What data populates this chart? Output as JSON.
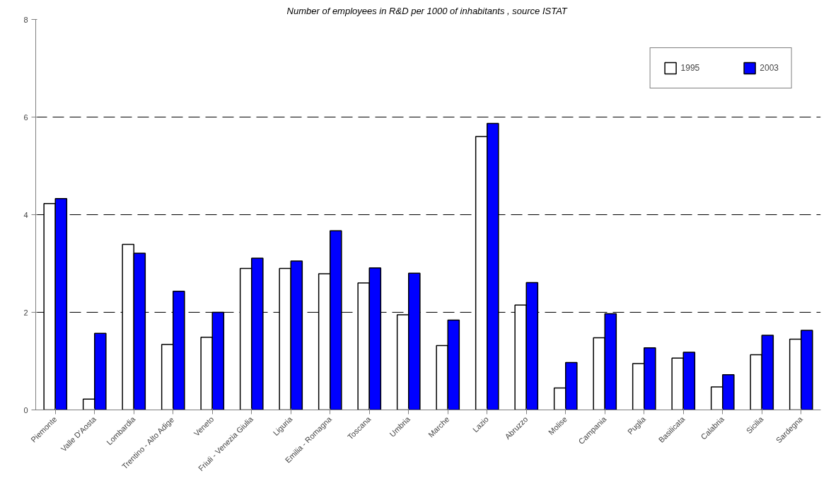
{
  "chart_data": {
    "type": "bar",
    "title": "Number of employees in R&D per 1000  of inhabitants , source ISTAT",
    "categories": [
      "Piemonte",
      "Valle D'Aosta",
      "Lombardia",
      "Trentino - Alto Adige",
      "Veneto",
      "Friuli - Venezia Giulia",
      "Liguria",
      "Emilia - Romagna",
      "Toscana",
      "Umbria",
      "Marche",
      "Lazio",
      "Abruzzo",
      "Molise",
      "Campania",
      "Puglia",
      "Basilicata",
      "Calabria",
      "Sicilia",
      "Sardegna"
    ],
    "series": [
      {
        "name": "1995",
        "color": "#ffffff",
        "values": [
          4.23,
          0.22,
          3.39,
          1.34,
          1.49,
          2.9,
          2.9,
          2.79,
          2.6,
          1.95,
          1.32,
          5.6,
          2.15,
          0.45,
          1.48,
          0.95,
          1.06,
          0.47,
          1.13,
          1.45
        ]
      },
      {
        "name": "2003",
        "color": "#0000ff",
        "values": [
          4.33,
          1.57,
          3.21,
          2.43,
          2.0,
          3.11,
          3.05,
          3.67,
          2.91,
          2.8,
          1.84,
          5.87,
          2.61,
          0.97,
          1.97,
          1.27,
          1.18,
          0.72,
          1.53,
          1.63
        ]
      }
    ],
    "ylim": [
      0,
      8
    ],
    "yticks": [
      0,
      2,
      4,
      6,
      8
    ],
    "grid": "y",
    "legend": "top right"
  }
}
